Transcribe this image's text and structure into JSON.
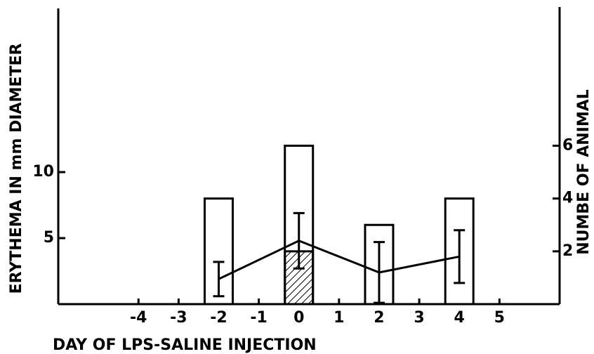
{
  "chart_data": {
    "type": "bar",
    "x_label": "DAY OF LPS-SALINE INJECTION",
    "y_label": "ERYTHEMA IN mm DIAMETER",
    "y2_label": "NUMBE OF ANIMAL",
    "x": [
      -2,
      0,
      2,
      4
    ],
    "xlim": [
      -6,
      6.5
    ],
    "xticks": [
      -4,
      -3,
      -2,
      -1,
      0,
      1,
      2,
      3,
      4,
      5
    ],
    "ylim": [
      0,
      22.4
    ],
    "yticks": [
      5,
      10
    ],
    "y2lim": [
      0,
      11.2
    ],
    "y2ticks": [
      2,
      4,
      6
    ],
    "series": [
      {
        "type": "bar",
        "axis": "y2",
        "color": "#ffffff",
        "values": [
          4,
          6,
          3,
          4
        ]
      },
      {
        "type": "bar",
        "axis": "y2",
        "hatch": true,
        "color": "#000000",
        "values": [
          null,
          2,
          null,
          null
        ]
      },
      {
        "type": "line",
        "color": "#000000",
        "values": [
          1.9,
          4.8,
          2.4,
          3.6
        ],
        "errors": [
          1.3,
          2.1,
          2.3,
          2.0
        ]
      }
    ]
  }
}
